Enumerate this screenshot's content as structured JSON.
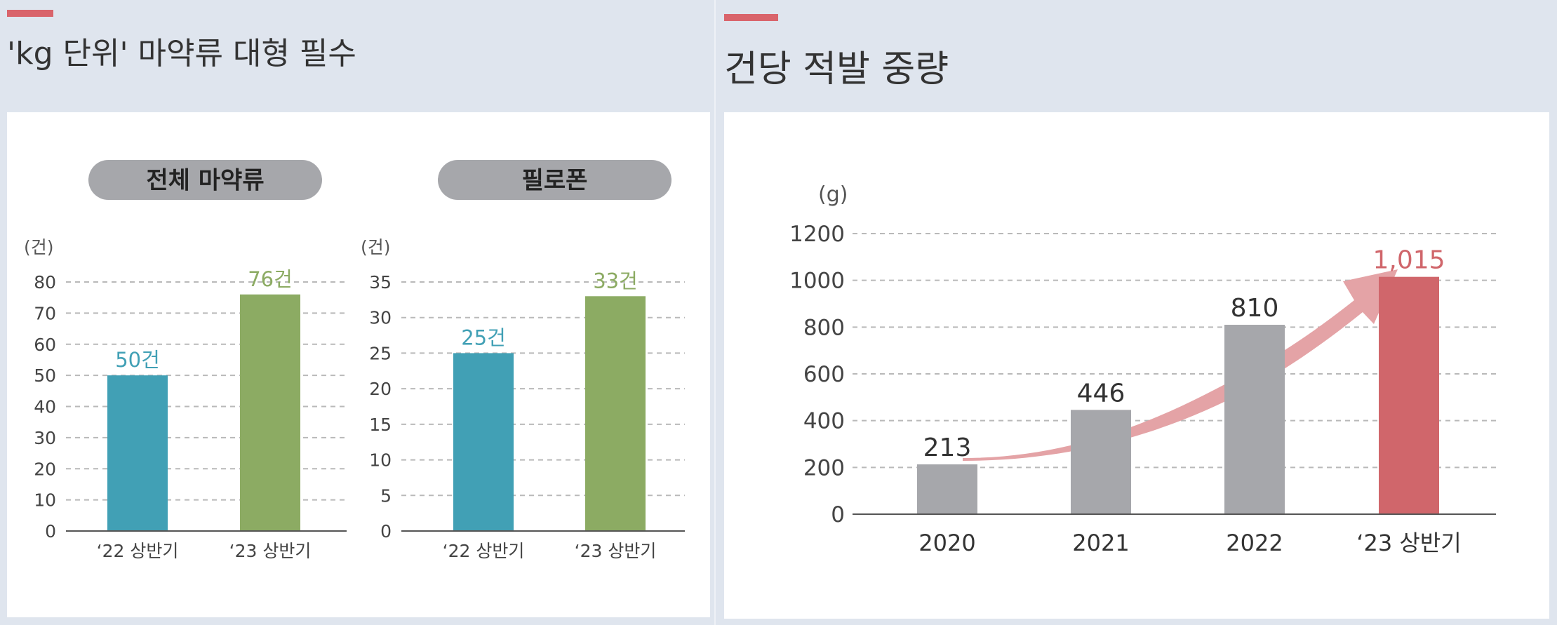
{
  "left_panel": {
    "title": "'kg 단위' 마약류 대형 필수"
  },
  "right_panel": {
    "title": "건당 적발 중량"
  },
  "colors": {
    "accent": "#d9646b",
    "teal": "#41a0b5",
    "green": "#8cab63",
    "gray": "#a6a7ab",
    "red": "#d0666b",
    "arrow": "#e4a3a6"
  },
  "chart_data": [
    {
      "type": "bar",
      "title": "전체 마약류",
      "unit": "(건)",
      "categories": [
        "‘22 상반기",
        "‘23 상반기"
      ],
      "values": [
        50,
        76
      ],
      "data_labels": [
        "50건",
        "76건"
      ],
      "bar_colors": [
        "#41a0b5",
        "#8cab63"
      ],
      "label_colors": [
        "#41a0b5",
        "#8cab63"
      ],
      "ylim": [
        0,
        80
      ],
      "yticks": [
        0,
        10,
        20,
        30,
        40,
        50,
        60,
        70,
        80
      ],
      "grid": true
    },
    {
      "type": "bar",
      "title": "필로폰",
      "unit": "(건)",
      "categories": [
        "‘22 상반기",
        "‘23 상반기"
      ],
      "values": [
        25,
        33
      ],
      "data_labels": [
        "25건",
        "33건"
      ],
      "bar_colors": [
        "#41a0b5",
        "#8cab63"
      ],
      "label_colors": [
        "#41a0b5",
        "#8cab63"
      ],
      "ylim": [
        0,
        35
      ],
      "yticks": [
        0,
        5,
        10,
        15,
        20,
        25,
        30,
        35
      ],
      "grid": true
    },
    {
      "type": "bar",
      "unit": "(g)",
      "categories": [
        "2020",
        "2021",
        "2022",
        "‘23 상반기"
      ],
      "values": [
        213,
        446,
        810,
        1015
      ],
      "data_labels": [
        "213",
        "446",
        "810",
        "1,015"
      ],
      "bar_colors": [
        "#a6a7ab",
        "#a6a7ab",
        "#a6a7ab",
        "#d0666b"
      ],
      "label_colors": [
        "#333333",
        "#333333",
        "#333333",
        "#d0666b"
      ],
      "ylim": [
        0,
        1200
      ],
      "yticks": [
        0,
        200,
        400,
        600,
        800,
        1000,
        1200
      ],
      "grid": true,
      "trend_arrow": true
    }
  ]
}
